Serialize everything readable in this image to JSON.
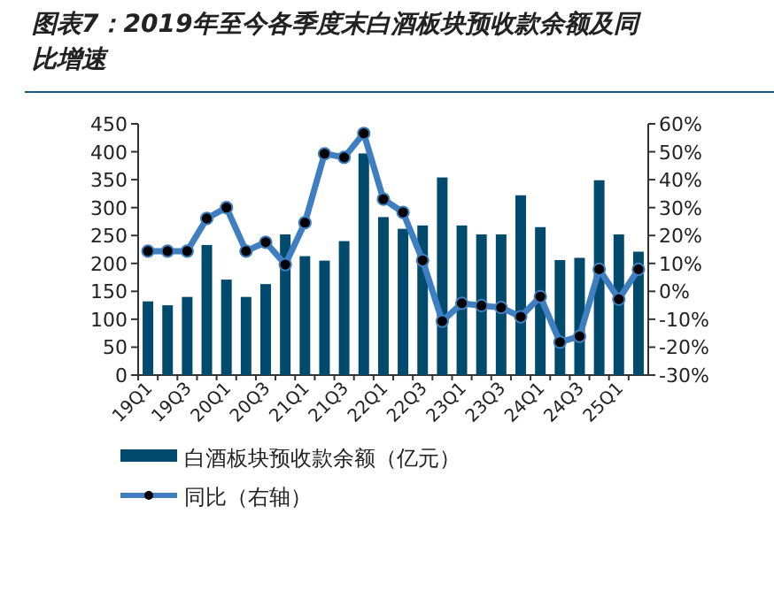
{
  "chart_data": {
    "type": "bar",
    "title": "图表7：2019年至今各季度末白酒板块预收款余额及同比增速",
    "categories": [
      "19Q1",
      null,
      "19Q3",
      null,
      "20Q1",
      null,
      "20Q3",
      null,
      "21Q1",
      null,
      "21Q3",
      null,
      "22Q1",
      null,
      "22Q3",
      null,
      "23Q1",
      null,
      "23Q3",
      null,
      "24Q1",
      null,
      "24Q3",
      null,
      "25Q1",
      null
    ],
    "series": [
      {
        "name": "白酒板块预收款余额（亿元）",
        "color": "#004a6e",
        "values": [
          132,
          125,
          140,
          233,
          171,
          140,
          163,
          252,
          213,
          205,
          240,
          397,
          283,
          262,
          268,
          354,
          268,
          252,
          252,
          322,
          265,
          206,
          210,
          349,
          252,
          221
        ]
      },
      {
        "name": "同比（右轴）",
        "type": "line",
        "axis": "y2",
        "color": "#3f7fc1",
        "marker": "circle",
        "values": [
          14.4,
          14.4,
          14.4,
          26.1,
          30,
          14.4,
          17.6,
          9.6,
          24.6,
          49.3,
          48,
          56.6,
          33,
          28.3,
          11.1,
          -10.7,
          -4.3,
          -5.1,
          -5.8,
          -9.1,
          -1.9,
          -18.2,
          -16.1,
          7.9,
          -2.8,
          7.9
        ]
      }
    ],
    "ylim": [
      0,
      450
    ],
    "yticks": [
      0,
      50,
      100,
      150,
      200,
      250,
      300,
      350,
      400,
      450
    ],
    "y2lim": [
      -30,
      60
    ],
    "y2ticks": [
      {
        "value": -30,
        "label": "-30%"
      },
      {
        "value": -20,
        "label": "-20%"
      },
      {
        "value": -10,
        "label": "-10%"
      },
      {
        "value": 0,
        "label": "0%"
      },
      {
        "value": 10,
        "label": "10%"
      },
      {
        "value": 20,
        "label": "20%"
      },
      {
        "value": 30,
        "label": "30%"
      },
      {
        "value": 40,
        "label": "40%"
      },
      {
        "value": 50,
        "label": "50%"
      },
      {
        "value": 60,
        "label": "60%"
      }
    ],
    "grid": false,
    "legend": "bottom"
  }
}
